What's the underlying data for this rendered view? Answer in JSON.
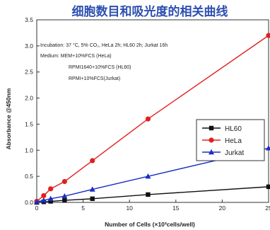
{
  "chart_data": {
    "type": "line",
    "title": "细胞数目和吸光度的相关曲线",
    "xlabel": "Number of Cells (×10³cells/well)",
    "ylabel": "Absorbance @450nm",
    "xlim": [
      0,
      25
    ],
    "ylim": [
      0,
      3.5
    ],
    "xticks": [
      "0",
      "5",
      "10",
      "15",
      "20",
      "25"
    ],
    "yticks": [
      "0.0",
      "0.5",
      "1.0",
      "1.5",
      "2.0",
      "2.5",
      "3.0",
      "3.5"
    ],
    "annotations": [
      "Incubation: 37 °C, 5% CO₂, HeLa 2h; HL60 2h; Jurkat 16h",
      "Medium: MEM+10%FCS (HeLa)",
      "RPMI1640+10%FCS (HL60)",
      "RPMI+10%FCS(Jurkat)"
    ],
    "legend_position": "right",
    "grid": false,
    "series": [
      {
        "name": "HL60",
        "color": "#111111",
        "marker": "square",
        "x": [
          0,
          0.75,
          1.5,
          3,
          6,
          12,
          25
        ],
        "values": [
          0.0,
          0.01,
          0.02,
          0.04,
          0.07,
          0.15,
          0.3
        ]
      },
      {
        "name": "HeLa",
        "color": "#e02020",
        "marker": "circle",
        "x": [
          0,
          0.75,
          1.5,
          3,
          6,
          12,
          25
        ],
        "values": [
          0.02,
          0.13,
          0.26,
          0.4,
          0.8,
          1.6,
          3.2
        ]
      },
      {
        "name": "Jurkat",
        "color": "#1a2fc0",
        "marker": "triangle",
        "x": [
          0,
          0.75,
          1.5,
          3,
          6,
          12,
          25
        ],
        "values": [
          0.01,
          0.04,
          0.07,
          0.12,
          0.25,
          0.5,
          1.04
        ]
      }
    ]
  }
}
